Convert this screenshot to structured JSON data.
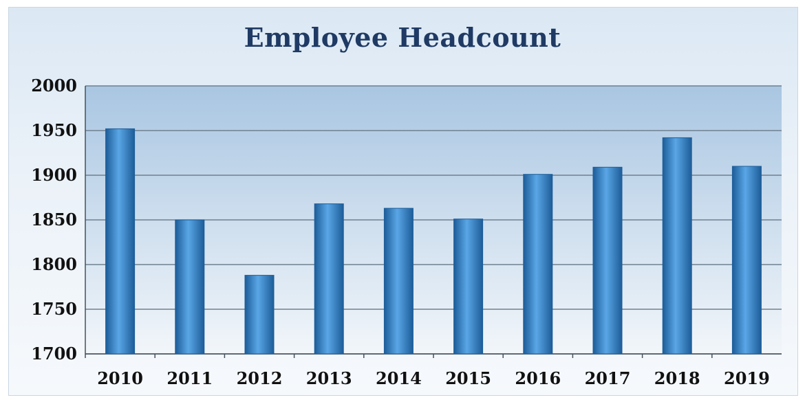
{
  "chart_data": {
    "type": "bar",
    "title": "Employee Headcount",
    "xlabel": "",
    "ylabel": "",
    "categories": [
      "2010",
      "2011",
      "2012",
      "2013",
      "2014",
      "2015",
      "2016",
      "2017",
      "2018",
      "2019"
    ],
    "values": [
      1952,
      1850,
      1788,
      1868,
      1863,
      1851,
      1901,
      1909,
      1942,
      1910
    ],
    "ylim": [
      1700,
      2000
    ],
    "yticks": [
      "1700",
      "1750",
      "1800",
      "1850",
      "1900",
      "1950",
      "2000"
    ],
    "grid": true,
    "legend": "none",
    "colors": {
      "bar": "#2f7fc6",
      "bar_dark": "#1d5d99",
      "bar_light": "#5aa6e6",
      "title": "#1f3a64",
      "grid": "#6e8090",
      "plot_top": "#a9c6e2",
      "plot_bottom": "#f2f6fa"
    }
  }
}
